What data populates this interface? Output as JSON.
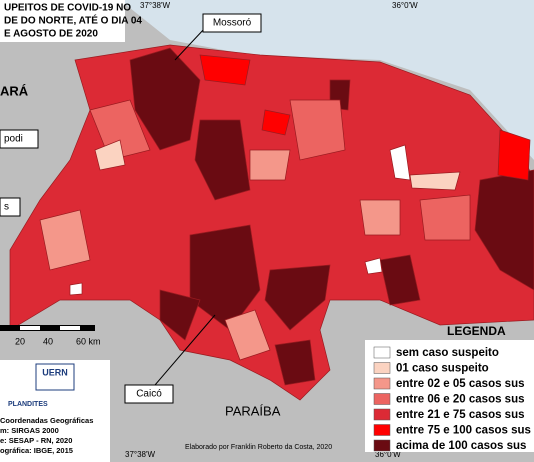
{
  "title_lines": [
    "UPEITOS DE COVID-19 NO",
    "DE DO NORTE, ATÉ O DIA 04",
    "E AGOSTO DE 2020"
  ],
  "coordinates": {
    "top": [
      "37°38'W",
      "36°0'W"
    ],
    "bottom": [
      "37°38'W",
      "36°0'W"
    ]
  },
  "places": {
    "mossoro": "Mossoró",
    "ceara": "ARÁ",
    "apodi": "podi",
    "left": "s",
    "caico": "Caicó",
    "paraiba": "PARAÍBA"
  },
  "scale": [
    "20",
    "40",
    "60 km"
  ],
  "legend": {
    "title": "LEGENDA",
    "items": [
      {
        "label": "sem caso suspeito",
        "color": "#ffffff"
      },
      {
        "label": "01 caso suspeito",
        "color": "#fbd3c1"
      },
      {
        "label": "entre 02 e 05 casos sus",
        "color": "#f4978a"
      },
      {
        "label": "entre 06 e 20 casos sus",
        "color": "#ec6461"
      },
      {
        "label": "entre 21 e 75 casos sus",
        "color": "#dc2a35"
      },
      {
        "label": "entre 75 e 100 casos sus",
        "color": "#ff0000"
      },
      {
        "label": "acima de 100 casos sus",
        "color": "#6a0b12"
      }
    ]
  },
  "credits": [
    "Coordenadas Geográficas",
    "m: SIRGAS 2000",
    "e: SESAP - RN, 2020",
    "ográfica: IBGE, 2015"
  ],
  "author": "Elaborado por Franklin Roberto da Costa, 2020",
  "logos": [
    "UERN",
    "PLANDITES"
  ]
}
